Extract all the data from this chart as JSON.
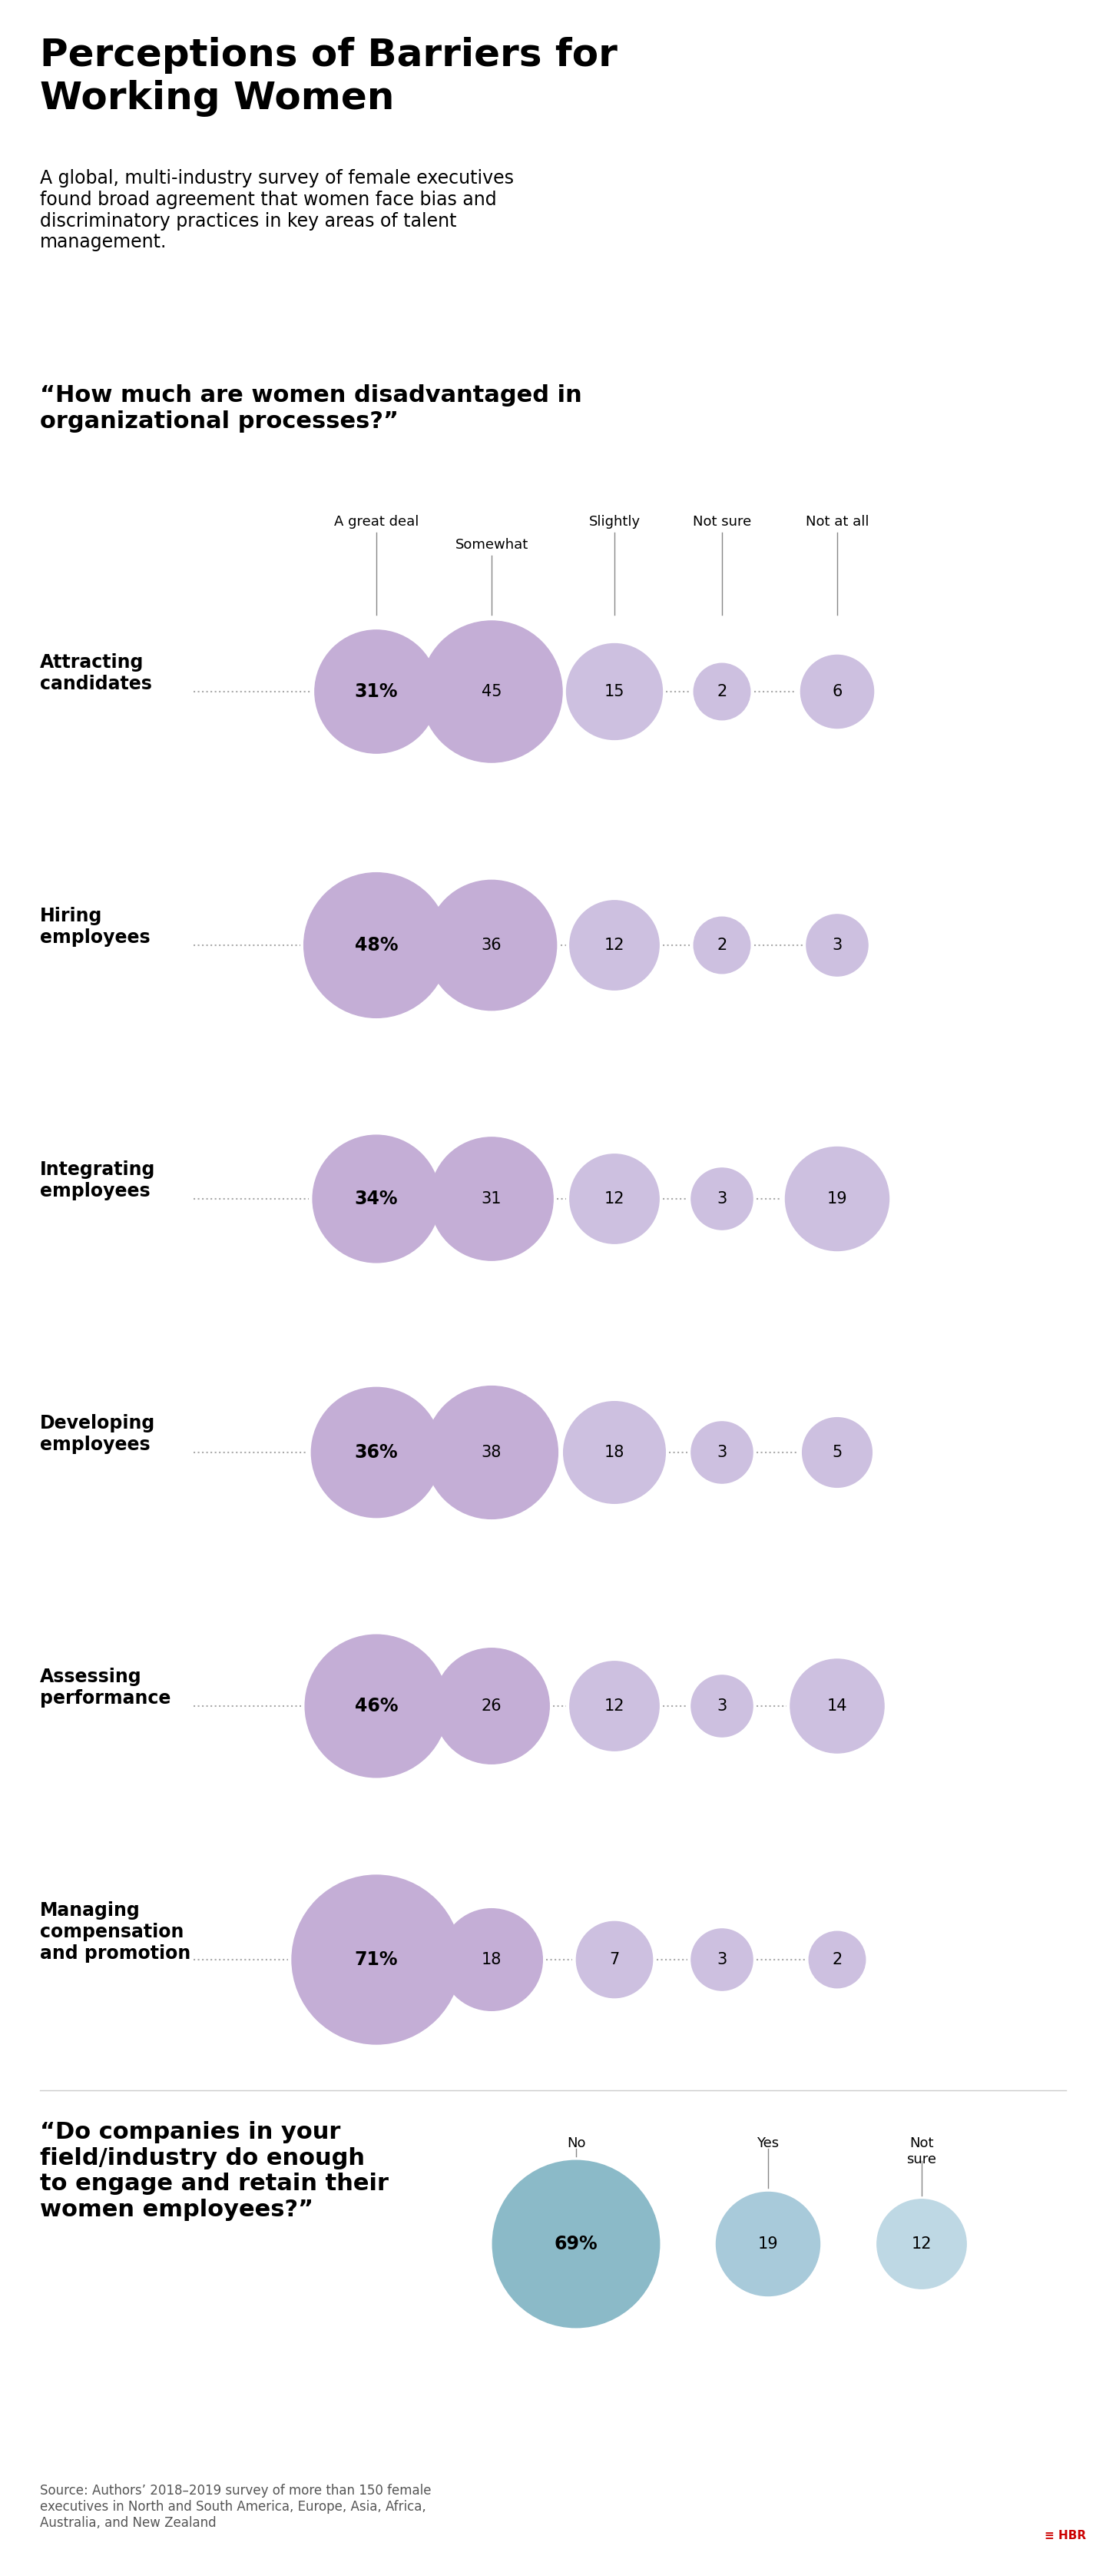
{
  "title_line1": "Perceptions of Barriers for",
  "title_line2": "Working Women",
  "subtitle": "A global, multi-industry survey of female executives\nfound broad agreement that women face bias and\ndiscriminatory practices in key areas of talent\nmanagement.",
  "question1": "“How much are women disadvantaged in\norganizational processes?”",
  "column_headers": [
    "A great deal",
    "Somewhat",
    "Slightly",
    "Not sure",
    "Not at all"
  ],
  "rows": [
    {
      "label": "Attracting\ncandidates",
      "values": [
        31,
        45,
        15,
        2,
        6
      ],
      "pct_label": "31%"
    },
    {
      "label": "Hiring\nemployees",
      "values": [
        48,
        36,
        12,
        2,
        3
      ],
      "pct_label": "48%"
    },
    {
      "label": "Integrating\nemployees",
      "values": [
        34,
        31,
        12,
        3,
        19
      ],
      "pct_label": "34%"
    },
    {
      "label": "Developing\nemployees",
      "values": [
        36,
        38,
        18,
        3,
        5
      ],
      "pct_label": "36%"
    },
    {
      "label": "Assessing\nperformance",
      "values": [
        46,
        26,
        12,
        3,
        14
      ],
      "pct_label": "46%"
    },
    {
      "label": "Managing\ncompensation\nand promotion",
      "values": [
        71,
        18,
        7,
        3,
        2
      ],
      "pct_label": "71%"
    }
  ],
  "col_bubble_colors": [
    "#C4AED6",
    "#C4AED6",
    "#C9B8DC",
    "#C9B8DC",
    "#C9B8DC"
  ],
  "question2": "“Do companies in your\nfield/industry do enough\nto engage and retain their\nwomen employees?”",
  "q2_labels": [
    "No",
    "Yes",
    "Not\nsure"
  ],
  "q2_values": [
    69,
    19,
    12
  ],
  "q2_pct_labels": [
    "69%",
    "19",
    "12"
  ],
  "q2_colors": [
    "#8BBAC8",
    "#A8CADA",
    "#BED8E4"
  ],
  "source": "Source: Authors’ 2018–2019 survey of more than 150 female\nexecutives in North and South America, Europe, Asia, Africa,\nAustralia, and New Zealand",
  "bg_color": "#FFFFFF",
  "text_color": "#000000",
  "dot_color": "#AAAAAA",
  "line_color": "#CCCCCC"
}
